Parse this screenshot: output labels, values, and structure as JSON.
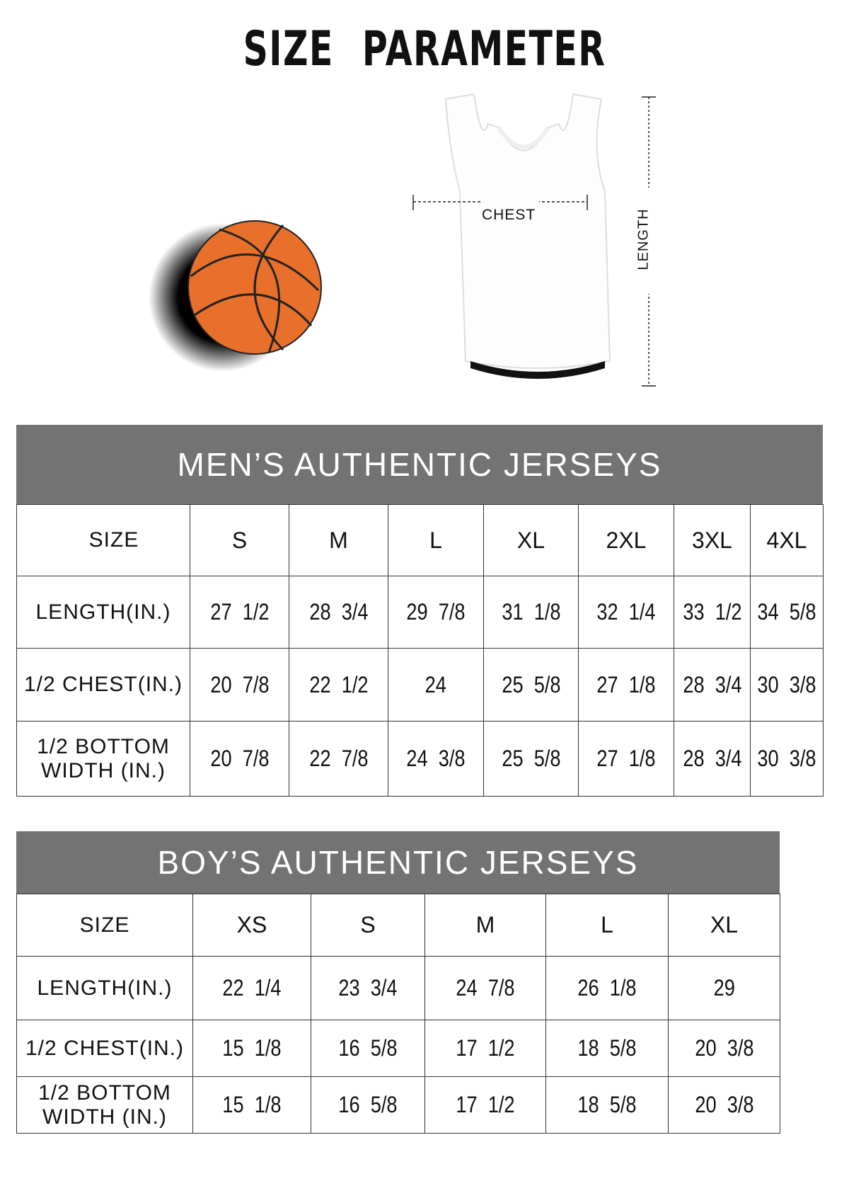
{
  "title": "SIZE PARAMETER",
  "diagram": {
    "chest_label": "CHEST",
    "length_label": "LENGTH",
    "ball_color": "#e8702a"
  },
  "mens": {
    "title": "MEN’S AUTHENTIC JERSEYS",
    "header": [
      "SIZE",
      "S",
      "M",
      "L",
      "XL",
      "2XL",
      "3XL",
      "4XL"
    ],
    "rows": [
      [
        "LENGTH(IN.)",
        "27  1/2",
        "28  3/4",
        "29  7/8",
        "31  1/8",
        "32  1/4",
        "33  1/2",
        "34  5/8"
      ],
      [
        "1/2 CHEST(IN.)",
        "20  7/8",
        "22  1/2",
        "24",
        "25  5/8",
        "27  1/8",
        "28  3/4",
        "30  3/8"
      ],
      [
        "1/2 BOTTOM WIDTH  (IN.)",
        "20  7/8",
        "22  7/8",
        "24  3/8",
        "25  5/8",
        "27  1/8",
        "28  3/4",
        "30  3/8"
      ]
    ]
  },
  "boys": {
    "title": "BOY’S AUTHENTIC JERSEYS",
    "header": [
      "SIZE",
      "XS",
      "S",
      "M",
      "L",
      "XL"
    ],
    "rows": [
      [
        "LENGTH(IN.)",
        "22  1/4",
        "23  3/4",
        "24  7/8",
        "26  1/8",
        "29"
      ],
      [
        "1/2 CHEST(IN.)",
        "15  1/8",
        "16  5/8",
        "17  1/2",
        "18  5/8",
        "20  3/8"
      ],
      [
        "1/2 BOTTOM WIDTH  (IN.)",
        "15  1/8",
        "16  5/8",
        "17  1/2",
        "18  5/8",
        "20  3/8"
      ]
    ]
  },
  "colors": {
    "band": "#737373",
    "border": "#333333"
  }
}
